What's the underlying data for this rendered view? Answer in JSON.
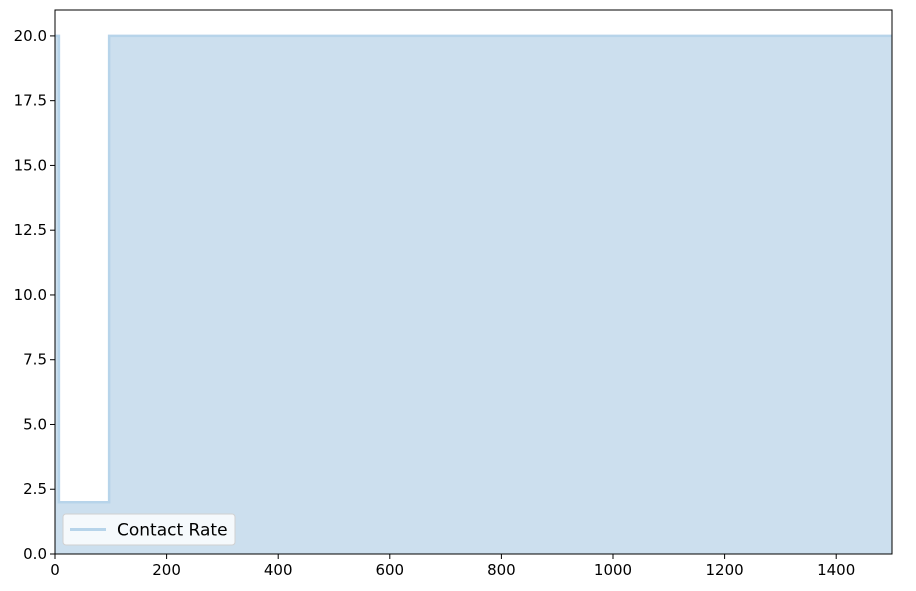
{
  "chart_data": {
    "type": "area",
    "title": "",
    "xlabel": "",
    "ylabel": "",
    "xlim": [
      0,
      1500
    ],
    "ylim": [
      0,
      21
    ],
    "xticks": [
      0,
      200,
      400,
      600,
      800,
      1000,
      1200,
      1400
    ],
    "yticks": [
      0.0,
      2.5,
      5.0,
      7.5,
      10.0,
      12.5,
      15.0,
      17.5,
      20.0
    ],
    "grid": false,
    "legend_position": "lower-left",
    "series": [
      {
        "name": "Contact Rate",
        "step": true,
        "line_color": "#b7d4ea",
        "fill_color": "#ccdfee",
        "x": [
          0,
          7,
          7,
          97,
          97,
          1500
        ],
        "y": [
          20,
          20,
          2,
          2,
          20,
          20
        ]
      }
    ]
  }
}
